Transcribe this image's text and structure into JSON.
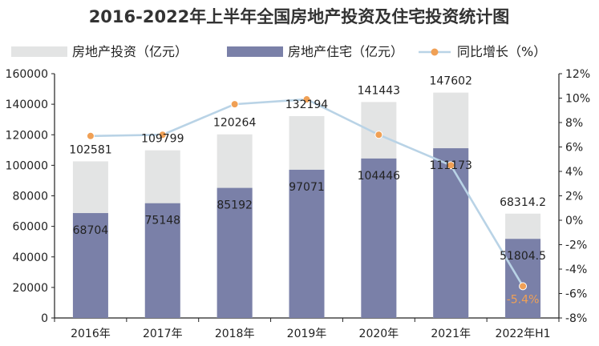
{
  "chart_data": {
    "type": "bar",
    "title": "2016-2022年上半年全国房地产投资及住宅投资统计图",
    "categories": [
      "2016年",
      "2017年",
      "2018年",
      "2019年",
      "2020年",
      "2021年",
      "2022年H1"
    ],
    "series": [
      {
        "name": "房地产投资（亿元）",
        "kind": "bar",
        "axis": "left",
        "color": "#e3e4e4",
        "values": [
          102581,
          109799,
          120264,
          132194,
          141443,
          147602,
          68314.2
        ],
        "labels": [
          "102581",
          "109799",
          "120264",
          "132194",
          "141443",
          "147602",
          "68314.2"
        ]
      },
      {
        "name": "房地产住宅（亿元）",
        "kind": "bar",
        "axis": "left",
        "color": "#7a80a8",
        "values": [
          68704,
          75148,
          85192,
          97071,
          104446,
          111173,
          51804.5
        ],
        "labels": [
          "68704",
          "75148",
          "85192",
          "97071",
          "104446",
          "111173",
          "51804.5"
        ]
      },
      {
        "name": "同比增长（%）",
        "kind": "line",
        "axis": "right",
        "color": "#b9d3e6",
        "marker_color": "#f0a055",
        "values": [
          6.9,
          7.0,
          9.5,
          9.9,
          7.0,
          4.5,
          -5.4
        ],
        "labels": [
          "",
          "",
          "",
          "",
          "",
          "",
          "-5.4%"
        ]
      }
    ],
    "ylim": [
      0,
      160000
    ],
    "yticks": [
      0,
      20000,
      40000,
      60000,
      80000,
      100000,
      120000,
      140000,
      160000
    ],
    "ylim_right": [
      -8,
      12
    ],
    "yticks_right": [
      -8,
      -6,
      -4,
      -2,
      0,
      2,
      4,
      6,
      8,
      10,
      12
    ],
    "ytick_right_suffix": "%",
    "xlabel": "",
    "ylabel": "",
    "legend_position": "top",
    "grid": false
  }
}
